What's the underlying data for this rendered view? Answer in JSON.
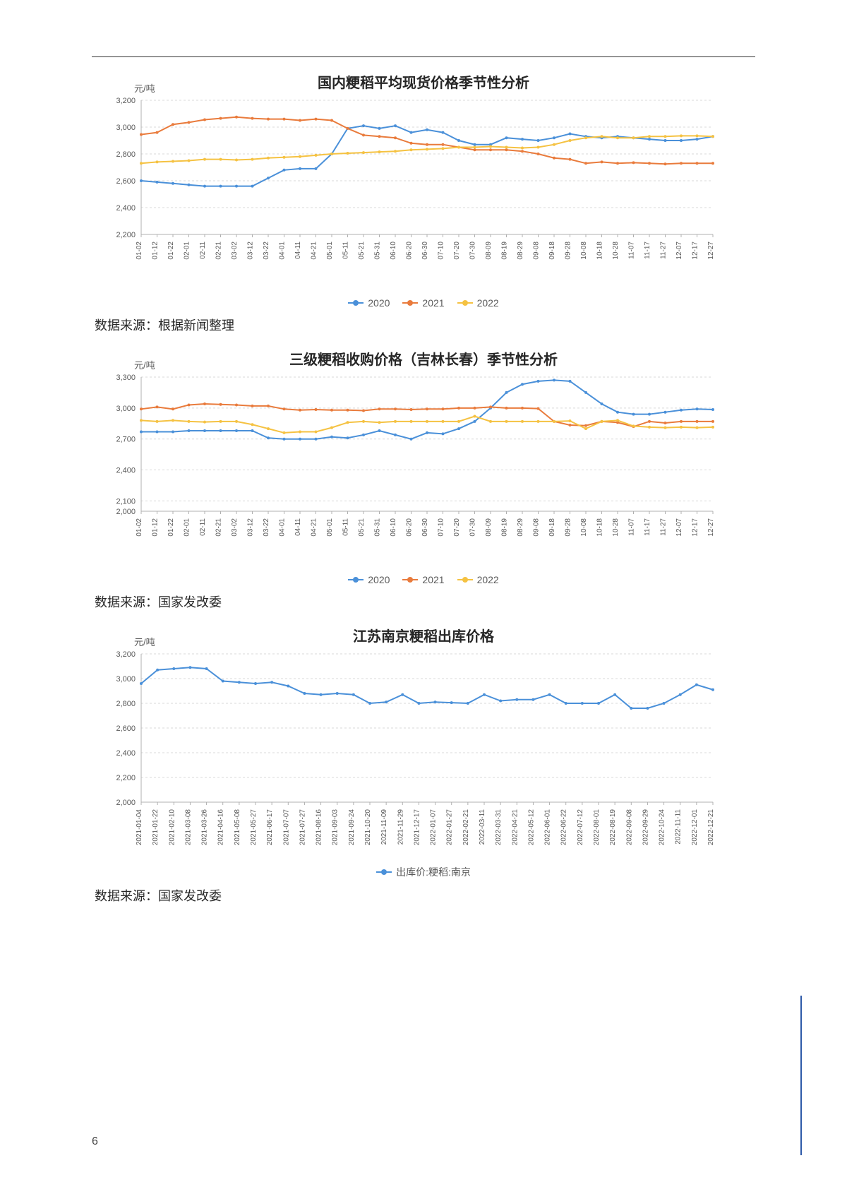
{
  "page_number": "6",
  "colors": {
    "s2020": "#4a90d9",
    "s2021": "#e97b3c",
    "s2022": "#f5c242",
    "grid": "#d9d9d9",
    "text": "#595959",
    "title": "#262626"
  },
  "x_labels_monthly": [
    "01-02",
    "01-12",
    "01-22",
    "02-01",
    "02-11",
    "02-21",
    "03-02",
    "03-12",
    "03-22",
    "04-01",
    "04-11",
    "04-21",
    "05-01",
    "05-11",
    "05-21",
    "05-31",
    "06-10",
    "06-20",
    "06-30",
    "07-10",
    "07-20",
    "07-30",
    "08-09",
    "08-19",
    "08-29",
    "09-08",
    "09-18",
    "09-28",
    "10-08",
    "10-18",
    "10-28",
    "11-07",
    "11-17",
    "11-27",
    "12-07",
    "12-17",
    "12-27"
  ],
  "chart1": {
    "title": "国内粳稻平均现货价格季节性分析",
    "ylabel": "元/吨",
    "y_min": 2200,
    "y_max": 3200,
    "y_step": 200,
    "series": {
      "2020": [
        2600,
        2590,
        2580,
        2570,
        2560,
        2560,
        2560,
        2560,
        2620,
        2680,
        2690,
        2690,
        2800,
        2990,
        3010,
        2990,
        3010,
        2960,
        2980,
        2960,
        2900,
        2870,
        2870,
        2920,
        2910,
        2900,
        2920,
        2950,
        2930,
        2920,
        2930,
        2920,
        2910,
        2900,
        2900,
        2910,
        2930
      ],
      "2021": [
        2945,
        2960,
        3020,
        3035,
        3055,
        3065,
        3075,
        3065,
        3060,
        3060,
        3050,
        3060,
        3050,
        2990,
        2940,
        2930,
        2920,
        2880,
        2870,
        2870,
        2850,
        2830,
        2830,
        2830,
        2820,
        2800,
        2770,
        2760,
        2730,
        2740,
        2730,
        2735,
        2730,
        2725,
        2730,
        2730,
        2730
      ],
      "2022": [
        2730,
        2740,
        2745,
        2750,
        2760,
        2760,
        2755,
        2760,
        2770,
        2775,
        2780,
        2790,
        2800,
        2805,
        2810,
        2815,
        2820,
        2830,
        2835,
        2840,
        2850,
        2850,
        2855,
        2850,
        2845,
        2850,
        2870,
        2900,
        2920,
        2930,
        2920,
        2920,
        2930,
        2930,
        2935,
        2935,
        2930
      ],
      "labels": [
        "2020",
        "2021",
        "2022"
      ]
    },
    "source": "数据来源：根据新闻整理"
  },
  "chart2": {
    "title": "三级粳稻收购价格（吉林长春）季节性分析",
    "ylabel": "元/吨",
    "y_min": 2000,
    "y_max": 3300,
    "y_step_major": 300,
    "extra_tick": 2100,
    "series": {
      "2020": [
        2770,
        2770,
        2770,
        2780,
        2780,
        2780,
        2780,
        2780,
        2710,
        2700,
        2700,
        2700,
        2720,
        2710,
        2740,
        2780,
        2740,
        2700,
        2760,
        2750,
        2800,
        2870,
        3000,
        3150,
        3230,
        3260,
        3270,
        3260,
        3150,
        3040,
        2960,
        2940,
        2940,
        2960,
        2980,
        2990,
        2985
      ],
      "2021": [
        2990,
        3010,
        2990,
        3030,
        3040,
        3035,
        3030,
        3020,
        3020,
        2990,
        2980,
        2985,
        2980,
        2980,
        2975,
        2990,
        2990,
        2985,
        2990,
        2990,
        3000,
        3000,
        3010,
        3000,
        3000,
        2995,
        2870,
        2835,
        2830,
        2870,
        2860,
        2820,
        2870,
        2855,
        2870,
        2870,
        2870
      ],
      "2022": [
        2880,
        2870,
        2880,
        2870,
        2865,
        2870,
        2870,
        2840,
        2800,
        2760,
        2770,
        2770,
        2810,
        2860,
        2870,
        2860,
        2870,
        2870,
        2870,
        2870,
        2870,
        2920,
        2870,
        2870,
        2870,
        2870,
        2870,
        2875,
        2800,
        2870,
        2880,
        2825,
        2815,
        2810,
        2815,
        2810,
        2815
      ],
      "labels": [
        "2020",
        "2021",
        "2022"
      ]
    },
    "source": "数据来源：国家发改委"
  },
  "chart3": {
    "title": "江苏南京粳稻出库价格",
    "ylabel": "元/吨",
    "y_min": 2000,
    "y_max": 3200,
    "y_step": 200,
    "x_labels": [
      "2021-01-04",
      "2021-01-22",
      "2021-02-10",
      "2021-03-08",
      "2021-03-26",
      "2021-04-16",
      "2021-05-08",
      "2021-05-27",
      "2021-06-17",
      "2021-07-07",
      "2021-07-27",
      "2021-08-16",
      "2021-09-03",
      "2021-09-24",
      "2021-10-20",
      "2021-11-09",
      "2021-11-29",
      "2021-12-17",
      "2022-01-07",
      "2022-01-27",
      "2022-02-21",
      "2022-03-11",
      "2022-03-31",
      "2022-04-21",
      "2022-05-12",
      "2022-06-01",
      "2022-06-22",
      "2022-07-12",
      "2022-08-01",
      "2022-08-19",
      "2022-09-08",
      "2022-09-29",
      "2022-10-24",
      "2022-11-11",
      "2022-12-01",
      "2022-12-21"
    ],
    "series_label": "出库价:粳稻:南京",
    "values": [
      2960,
      3070,
      3080,
      3090,
      3080,
      2980,
      2970,
      2960,
      2970,
      2940,
      2880,
      2870,
      2880,
      2870,
      2800,
      2810,
      2870,
      2800,
      2810,
      2805,
      2800,
      2870,
      2820,
      2830,
      2830,
      2870,
      2800,
      2800,
      2800,
      2870,
      2760,
      2760,
      2800,
      2870,
      2950,
      2910
    ],
    "source": "数据来源：国家发改委"
  }
}
